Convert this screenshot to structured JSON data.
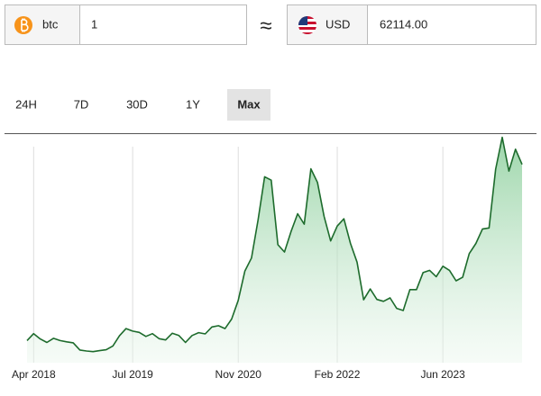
{
  "converter": {
    "from_code": "btc",
    "from_amount": "1",
    "approx": "≈",
    "to_code": "USD",
    "to_amount": "62114.00"
  },
  "range_buttons": [
    "24H",
    "7D",
    "30D",
    "1Y",
    "Max"
  ],
  "selected_range": 4,
  "chart_data": {
    "type": "area",
    "color": "#1d6b2c",
    "categories": [
      null,
      "Apr 2018",
      null,
      null,
      null,
      null,
      null,
      null,
      null,
      null,
      null,
      null,
      null,
      null,
      null,
      null,
      "Jul 2019",
      null,
      null,
      null,
      null,
      null,
      null,
      null,
      null,
      null,
      null,
      null,
      null,
      null,
      null,
      null,
      "Nov 2020",
      null,
      null,
      null,
      null,
      null,
      null,
      null,
      null,
      null,
      null,
      null,
      null,
      null,
      null,
      "Feb 2022",
      null,
      null,
      null,
      null,
      null,
      null,
      null,
      null,
      null,
      null,
      null,
      null,
      null,
      null,
      null,
      "Jun 2023",
      null,
      null,
      null,
      null,
      null,
      null,
      null,
      null,
      null,
      null,
      null,
      null
    ],
    "values": [
      7000,
      9200,
      7500,
      6400,
      7700,
      7000,
      6600,
      6300,
      4000,
      3700,
      3500,
      3800,
      4100,
      5300,
      8500,
      10800,
      10000,
      9600,
      8300,
      9200,
      7600,
      7200,
      9300,
      8600,
      6400,
      8600,
      9500,
      9100,
      11300,
      11700,
      10800,
      13800,
      19700,
      29000,
      33100,
      45100,
      58800,
      57700,
      37300,
      35000,
      41500,
      47100,
      43800,
      61300,
      57000,
      46300,
      38500,
      43200,
      45500,
      37700,
      31800,
      19900,
      23300,
      20000,
      19400,
      20500,
      17200,
      16500,
      23100,
      23100,
      28500,
      29200,
      27200,
      30500,
      29200,
      25900,
      27000,
      34500,
      37700,
      42300,
      42600,
      61200,
      71300,
      60600,
      67500,
      62700
    ],
    "ylim": [
      0,
      72000
    ],
    "grid": true
  }
}
